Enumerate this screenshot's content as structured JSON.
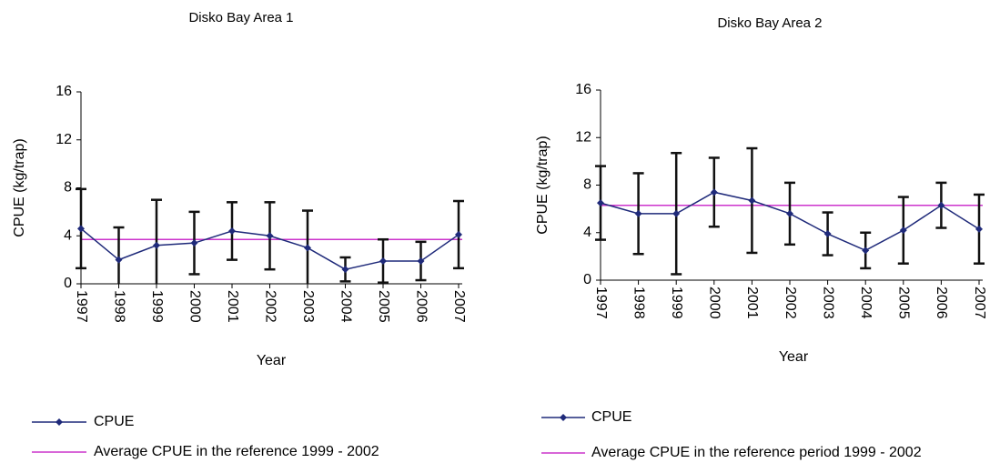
{
  "chart_data": [
    {
      "type": "line",
      "title": "Disko Bay Area 1",
      "xlabel": "Year",
      "ylabel": "CPUE (kg/trap)",
      "categories": [
        "1997",
        "1998",
        "1999",
        "2000",
        "2001",
        "2002",
        "2003",
        "2004",
        "2005",
        "2006",
        "2007"
      ],
      "series": [
        {
          "name": "CPUE",
          "color": "#1f2a7a",
          "values": [
            4.6,
            2.0,
            3.2,
            3.4,
            4.4,
            4.0,
            3.0,
            1.2,
            1.9,
            1.9,
            4.1
          ],
          "errors": [
            3.3,
            2.7,
            3.8,
            2.6,
            2.4,
            2.8,
            3.1,
            1.0,
            1.8,
            1.6,
            2.8
          ]
        }
      ],
      "reference_line": {
        "name": "Average CPUE in the reference 1999 - 2002",
        "color": "#cc33cc",
        "value": 3.7
      },
      "ylim": [
        0,
        16
      ],
      "yticks": [
        0,
        4,
        8,
        12,
        16
      ]
    },
    {
      "type": "line",
      "title": "Disko Bay Area 2",
      "xlabel": "Year",
      "ylabel": "CPUE (kg/trap)",
      "categories": [
        "1997",
        "1998",
        "1999",
        "2000",
        "2001",
        "2002",
        "2003",
        "2004",
        "2005",
        "2006",
        "2007"
      ],
      "series": [
        {
          "name": "CPUE",
          "color": "#1f2a7a",
          "values": [
            6.5,
            5.6,
            5.6,
            7.4,
            6.7,
            5.6,
            3.9,
            2.5,
            4.2,
            6.3,
            4.3
          ],
          "errors": [
            3.1,
            3.4,
            5.1,
            2.9,
            4.4,
            2.6,
            1.8,
            1.5,
            2.8,
            1.9,
            2.9
          ]
        }
      ],
      "reference_line": {
        "name": "Average CPUE in the reference period 1999 - 2002",
        "color": "#cc33cc",
        "value": 6.3
      },
      "ylim": [
        0,
        16
      ],
      "yticks": [
        0,
        4,
        8,
        12,
        16
      ]
    }
  ]
}
